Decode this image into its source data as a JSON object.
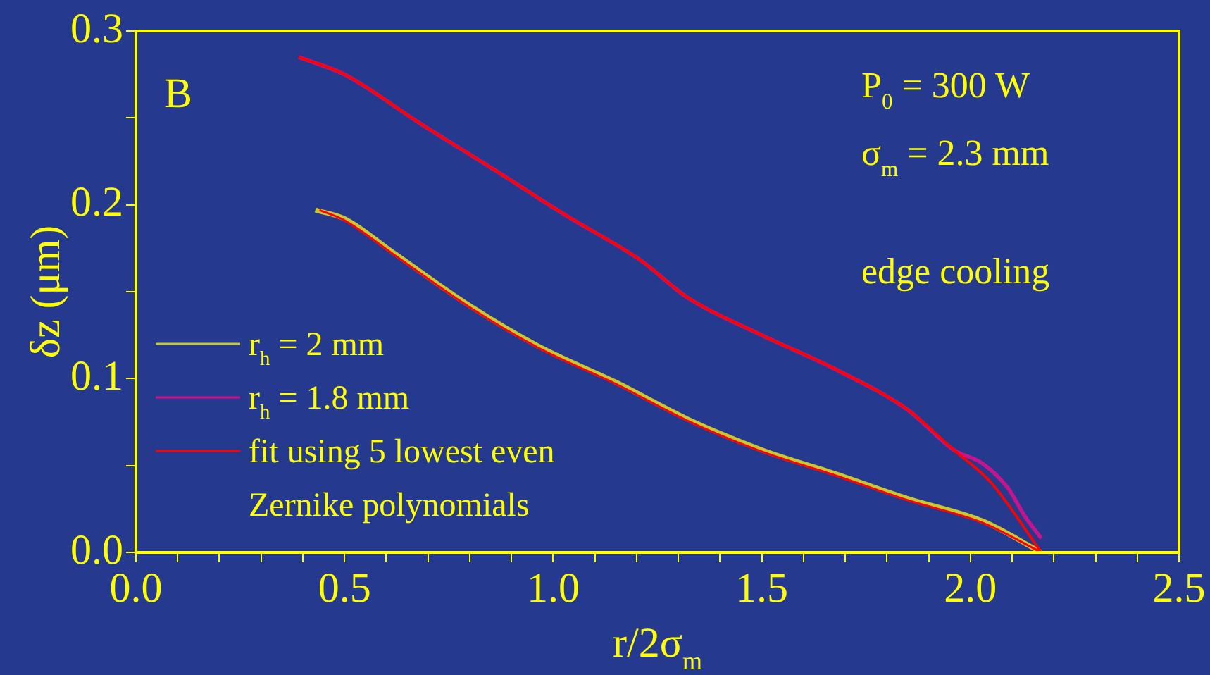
{
  "chart_data": {
    "type": "line",
    "xlabel": "r/2σ$_{m}$",
    "ylabel": "δz (μm)",
    "annotations": [
      "B",
      "P$_{0}$ = 300 W",
      "σ$_{m}$ = 2.3 mm",
      "edge cooling"
    ],
    "xlim": [
      0,
      2.5
    ],
    "ylim": [
      0,
      0.3
    ],
    "xticks": [
      {
        "value": 0,
        "label": "0.0"
      },
      {
        "value": 0.1,
        "label": null
      },
      {
        "value": 0.2,
        "label": null
      },
      {
        "value": 0.3,
        "label": null
      },
      {
        "value": 0.4,
        "label": null
      },
      {
        "value": 0.5,
        "label": "0.5"
      },
      {
        "value": 0.6,
        "label": null
      },
      {
        "value": 0.7,
        "label": null
      },
      {
        "value": 0.8,
        "label": null
      },
      {
        "value": 0.9,
        "label": null
      },
      {
        "value": 1,
        "label": "1.0"
      },
      {
        "value": 1.1,
        "label": null
      },
      {
        "value": 1.2,
        "label": null
      },
      {
        "value": 1.3,
        "label": null
      },
      {
        "value": 1.4,
        "label": null
      },
      {
        "value": 1.5,
        "label": "1.5"
      },
      {
        "value": 1.6,
        "label": null
      },
      {
        "value": 1.7,
        "label": null
      },
      {
        "value": 1.8,
        "label": null
      },
      {
        "value": 1.9,
        "label": null
      },
      {
        "value": 2,
        "label": "2.0"
      },
      {
        "value": 2.1,
        "label": null
      },
      {
        "value": 2.2,
        "label": null
      },
      {
        "value": 2.3,
        "label": null
      },
      {
        "value": 2.4,
        "label": null
      },
      {
        "value": 2.5,
        "label": "2.5"
      }
    ],
    "yticks": [
      {
        "value": 0,
        "label": "0.0"
      },
      {
        "value": 0.05,
        "label": null
      },
      {
        "value": 0.1,
        "label": "0.1"
      },
      {
        "value": 0.15,
        "label": null
      },
      {
        "value": 0.2,
        "label": "0.2"
      },
      {
        "value": 0.25,
        "label": null
      },
      {
        "value": 0.3,
        "label": "0.3"
      }
    ],
    "grid": false,
    "legend": "bottom left",
    "marker": "none",
    "line_style": "solid",
    "series": [
      {
        "name": "r$_{h}$ = 2 mm",
        "color": "#c8c832",
        "x": [
          0.43,
          0.5,
          0.62,
          0.8,
          0.97,
          1.15,
          1.32,
          1.5,
          1.68,
          1.85,
          2.03,
          2.17
        ],
        "values": [
          0.197,
          0.192,
          0.172,
          0.142,
          0.118,
          0.098,
          0.077,
          0.059,
          0.045,
          0.031,
          0.018,
          0.0
        ]
      },
      {
        "name": "r$_{h}$ = 1.8 mm",
        "color": "#c8148c",
        "x": [
          0.39,
          0.5,
          0.68,
          0.86,
          1.03,
          1.21,
          1.32,
          1.5,
          1.68,
          1.85,
          1.96,
          2.03,
          2.09,
          2.13,
          2.17
        ],
        "values": [
          0.285,
          0.275,
          0.247,
          0.22,
          0.194,
          0.168,
          0.147,
          0.125,
          0.105,
          0.082,
          0.059,
          0.051,
          0.037,
          0.021,
          0.008
        ]
      },
      {
        "name": "fit using 5 lowest even Zernike polynomials",
        "color": "#ff0000",
        "x": [
          0.39,
          0.5,
          0.68,
          0.86,
          1.03,
          1.21,
          1.32,
          1.5,
          1.68,
          1.85,
          1.96,
          2.05,
          2.17
        ],
        "values": [
          0.285,
          0.275,
          0.247,
          0.22,
          0.194,
          0.168,
          0.147,
          0.125,
          0.105,
          0.082,
          0.059,
          0.04,
          0.0
        ]
      },
      {
        "color": "#ff0000",
        "x": [
          0.44,
          0.5,
          0.62,
          0.8,
          0.97,
          1.15,
          1.32,
          1.5,
          1.68,
          1.85,
          2.03,
          2.17
        ],
        "values": [
          0.197,
          0.191,
          0.171,
          0.141,
          0.117,
          0.097,
          0.076,
          0.058,
          0.044,
          0.03,
          0.017,
          0.0
        ]
      }
    ]
  }
}
